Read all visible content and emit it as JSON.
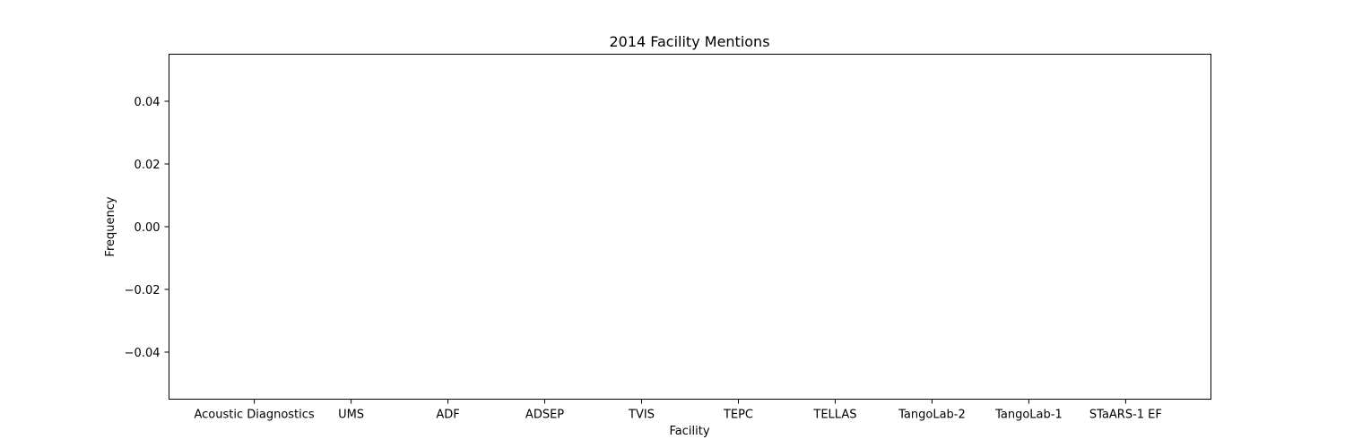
{
  "chart_data": {
    "type": "bar",
    "title": "2014 Facility Mentions",
    "xlabel": "Facility",
    "ylabel": "Frequency",
    "categories": [
      "Acoustic Diagnostics",
      "UMS",
      "ADF",
      "ADSEP",
      "TVIS",
      "TEPC",
      "TELLAS",
      "TangoLab-2",
      "TangoLab-1",
      "STaARS-1 EF"
    ],
    "values": [
      0,
      0,
      0,
      0,
      0,
      0,
      0,
      0,
      0,
      0
    ],
    "ylim": [
      -0.055,
      0.055
    ],
    "yticks": [
      0.04,
      0.02,
      0.0,
      -0.02,
      -0.04
    ],
    "ytick_labels": [
      "0.04",
      "0.02",
      "0.00",
      "−0.02",
      "−0.04"
    ],
    "grid": false,
    "colors": {
      "axes": "#000000",
      "background": "#ffffff",
      "bar": "#1f77b4"
    }
  }
}
